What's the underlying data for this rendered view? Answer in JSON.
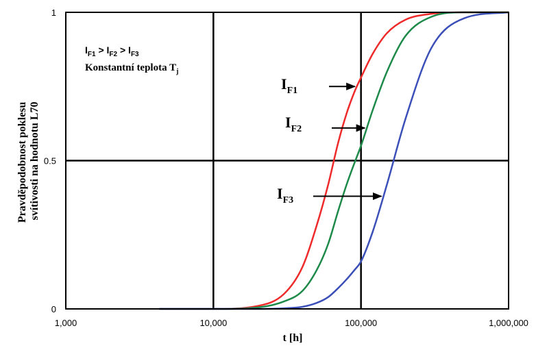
{
  "chart_data": {
    "type": "line",
    "title": "",
    "xlabel": "t [h]",
    "ylabel_lines": [
      "Pravděpodobnost poklesu",
      "svítivosti na hodnotu L70"
    ],
    "xscale": "log",
    "xlim": [
      1000,
      1000000
    ],
    "ylim": [
      0,
      1
    ],
    "x_ticks": [
      {
        "value": 1000,
        "label": "1,000"
      },
      {
        "value": 10000,
        "label": "10,000"
      },
      {
        "value": 100000,
        "label": "100,000"
      },
      {
        "value": 1000000,
        "label": "1,000,000"
      }
    ],
    "y_ticks": [
      {
        "value": 0,
        "label": "0"
      },
      {
        "value": 0.5,
        "label": "0.5"
      },
      {
        "value": 1,
        "label": "1"
      }
    ],
    "grid": {
      "x": [
        10000,
        100000
      ],
      "y": [
        0.5
      ]
    },
    "annotations": {
      "relation": {
        "parts": [
          "I",
          "F1",
          " > I",
          "F2",
          " > I",
          "F3"
        ]
      },
      "condition": {
        "main": "Konstantní teplota T",
        "sub": "j"
      }
    },
    "series": [
      {
        "name": "IF1",
        "label_main": "I",
        "label_sub": "F1",
        "color": "#ee2a2a",
        "x_start": 4300,
        "x": [
          4300,
          10000,
          20000,
          30000,
          40000,
          50000,
          60000,
          70000,
          80000,
          90000,
          100000,
          120000,
          150000,
          200000,
          300000,
          500000,
          1000000
        ],
        "y": [
          0,
          0,
          0.01,
          0.05,
          0.14,
          0.28,
          0.42,
          0.56,
          0.66,
          0.73,
          0.78,
          0.86,
          0.93,
          0.975,
          0.995,
          1,
          1
        ]
      },
      {
        "name": "IF2",
        "label_main": "I",
        "label_sub": "F2",
        "color": "#1e8a4a",
        "x_start": 4300,
        "x": [
          4300,
          10000,
          20000,
          30000,
          40000,
          50000,
          60000,
          70000,
          80000,
          90000,
          100000,
          120000,
          150000,
          200000,
          300000,
          500000,
          1000000
        ],
        "y": [
          0,
          0,
          0.005,
          0.025,
          0.06,
          0.13,
          0.22,
          0.33,
          0.42,
          0.49,
          0.55,
          0.67,
          0.8,
          0.92,
          0.985,
          1,
          1
        ]
      },
      {
        "name": "IF3",
        "label_main": "I",
        "label_sub": "F3",
        "color": "#3b4fb8",
        "x_start": 4300,
        "x": [
          4300,
          10000,
          20000,
          30000,
          40000,
          50000,
          60000,
          70000,
          80000,
          90000,
          100000,
          120000,
          150000,
          200000,
          300000,
          500000,
          1000000
        ],
        "y": [
          0,
          0,
          0,
          0.002,
          0.007,
          0.02,
          0.04,
          0.07,
          0.1,
          0.13,
          0.16,
          0.26,
          0.42,
          0.64,
          0.88,
          0.98,
          1
        ]
      }
    ]
  }
}
